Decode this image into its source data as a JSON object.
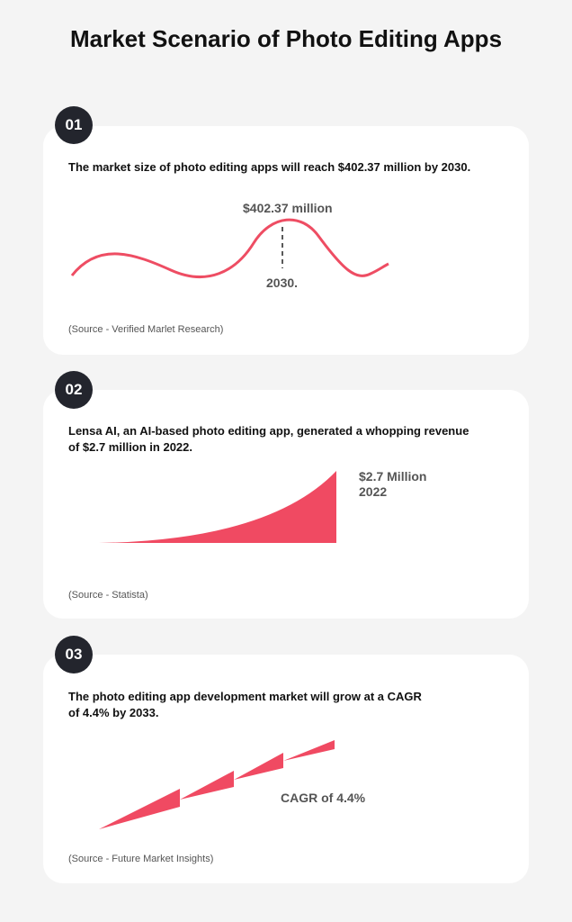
{
  "header": {
    "title": "Market Scenario of Photo Editing Apps"
  },
  "cards": [
    {
      "number": "01",
      "text": [
        "The market size of photo editing apps will reach $402.37 million by 2030."
      ],
      "labels": [
        "$402.37 million",
        "2030."
      ],
      "source": "(Source - Verified Marlet Research)"
    },
    {
      "number": "02",
      "text": [
        "Lensa AI, an AI-based photo editing app, generated a whopping revenue",
        "of $2.7 million in 2022."
      ],
      "labels": [
        "$2.7 Million",
        "2022"
      ],
      "source": "(Source - Statista)"
    },
    {
      "number": "03",
      "text": [
        "The photo editing app development market will grow at a CAGR",
        "of 4.4% by 2033."
      ],
      "labels": [
        "CAGR of 4.4%"
      ],
      "source": "(Source - Future Market Insights)"
    }
  ]
}
